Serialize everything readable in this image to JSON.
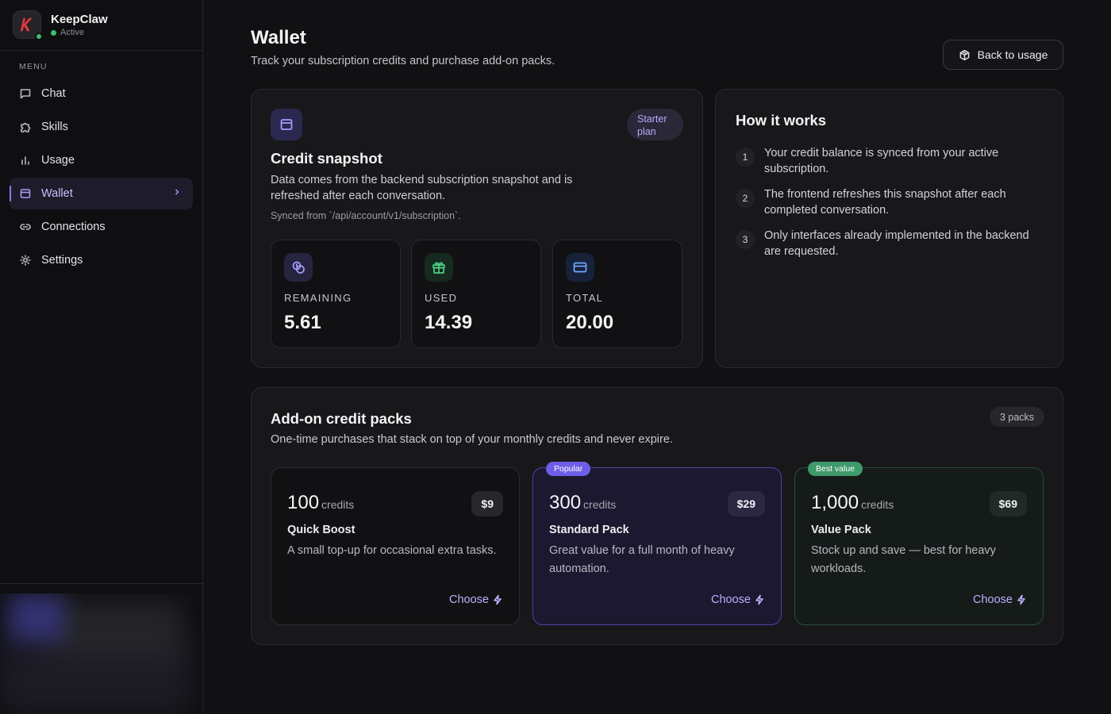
{
  "app": {
    "name": "KeepClaw",
    "status": "Active"
  },
  "sidebar": {
    "menu_label": "MENU",
    "items": [
      {
        "label": "Chat",
        "icon": "chat-icon"
      },
      {
        "label": "Skills",
        "icon": "puzzle-icon"
      },
      {
        "label": "Usage",
        "icon": "bar-chart-icon"
      },
      {
        "label": "Wallet",
        "icon": "wallet-icon",
        "active": true
      },
      {
        "label": "Connections",
        "icon": "link-icon"
      },
      {
        "label": "Settings",
        "icon": "gear-icon"
      }
    ]
  },
  "header": {
    "title": "Wallet",
    "subtitle": "Track your subscription credits and purchase add-on packs.",
    "back_button": "Back to usage"
  },
  "snapshot": {
    "plan_badge": "Starter plan",
    "title": "Credit snapshot",
    "description": "Data comes from the backend subscription snapshot and is refreshed after each conversation.",
    "synced_from": "Synced from `/api/account/v1/subscription`.",
    "stats": [
      {
        "label": "REMAINING",
        "value": "5.61",
        "icon": "coins-icon",
        "color": "#a99dfc"
      },
      {
        "label": "USED",
        "value": "14.39",
        "icon": "gift-icon",
        "color": "#4fcf86"
      },
      {
        "label": "TOTAL",
        "value": "20.00",
        "icon": "credit-card-icon",
        "color": "#6ea8ff"
      }
    ]
  },
  "how_it_works": {
    "title": "How it works",
    "steps": [
      {
        "num": "1",
        "text": "Your credit balance is synced from your active subscription."
      },
      {
        "num": "2",
        "text": "The frontend refreshes this snapshot after each completed conversation."
      },
      {
        "num": "3",
        "text": "Only interfaces already implemented in the backend are requested."
      }
    ]
  },
  "packs": {
    "title": "Add-on credit packs",
    "subtitle": "One-time purchases that stack on top of your monthly credits and never expire.",
    "count": "3 packs",
    "items": [
      {
        "credits": "100",
        "unit": "credits",
        "price": "$9",
        "name": "Quick Boost",
        "description": "A small top-up for occasional extra tasks.",
        "cta": "Choose",
        "tag": ""
      },
      {
        "credits": "300",
        "unit": "credits",
        "price": "$29",
        "name": "Standard Pack",
        "description": "Great value for a full month of heavy automation.",
        "cta": "Choose",
        "tag": "Popular"
      },
      {
        "credits": "1,000",
        "unit": "credits",
        "price": "$69",
        "name": "Value Pack",
        "description": "Stock up and save — best for heavy workloads.",
        "cta": "Choose",
        "tag": "Best value"
      }
    ]
  },
  "colors": {
    "accent": "#8b7cf6",
    "popular": "#6f5ee8",
    "best_value": "#3f9a6b",
    "status_active": "#3fbf6a"
  }
}
